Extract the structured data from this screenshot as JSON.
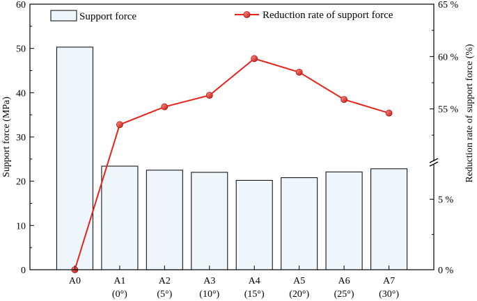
{
  "chart_data": {
    "type": "bar+line",
    "categories": [
      {
        "line1": "A0",
        "line2": ""
      },
      {
        "line1": "A1",
        "line2": "(0°)"
      },
      {
        "line1": "A2",
        "line2": "(5°)"
      },
      {
        "line1": "A3",
        "line2": "(10°)"
      },
      {
        "line1": "A4",
        "line2": "(15°)"
      },
      {
        "line1": "A5",
        "line2": "(20°)"
      },
      {
        "line1": "A6",
        "line2": "(25°)"
      },
      {
        "line1": "A7",
        "line2": "(30°)"
      }
    ],
    "series": [
      {
        "name": "Support force",
        "type": "bar",
        "axis": "left",
        "values": [
          50.3,
          23.4,
          22.5,
          22.0,
          20.2,
          20.8,
          22.1,
          22.8
        ],
        "fill": "#eef6fb",
        "stroke": "#000000"
      },
      {
        "name": "Reduction rate of support force",
        "type": "line",
        "axis": "right",
        "values": [
          0,
          53.5,
          55.2,
          56.3,
          59.8,
          58.5,
          55.9,
          54.6
        ],
        "color": "#e8231d"
      }
    ],
    "y_left": {
      "label": "Support force (MPa)",
      "lim": [
        0,
        60
      ],
      "ticks": [
        0,
        10,
        20,
        30,
        40,
        50,
        60
      ]
    },
    "y_right": {
      "label": "Reduction rate of support force (%)",
      "broken": true,
      "lower_segment": {
        "lim": [
          0,
          7.5
        ],
        "ticks": [
          0,
          5
        ]
      },
      "upper_segment": {
        "lim": [
          50,
          65
        ],
        "ticks": [
          55,
          60,
          65
        ]
      },
      "tick_labels": {
        "0": "0 %",
        "5": "5 %",
        "55": "55 %",
        "60": "60 %",
        "65": "65 %"
      }
    },
    "legend": {
      "bar_position": "top-left",
      "line_position": "top-right"
    }
  }
}
